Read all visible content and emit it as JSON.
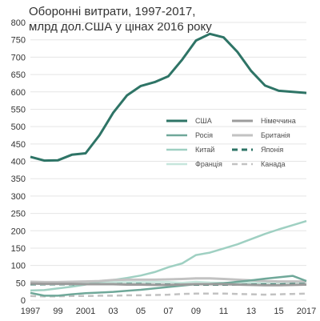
{
  "chart_data": {
    "type": "line",
    "title_line1": "Оборонні витрати, 1997-2017,",
    "title_line2": "млрд дол.США у цінах 2016 року",
    "xlabel": "",
    "ylabel": "",
    "xlim": [
      1997,
      2017
    ],
    "ylim": [
      0,
      800
    ],
    "grid": true,
    "legend_position": "middle",
    "x": [
      1997,
      1998,
      1999,
      2000,
      2001,
      2002,
      2003,
      2004,
      2005,
      2006,
      2007,
      2008,
      2009,
      2010,
      2011,
      2012,
      2013,
      2014,
      2015,
      2016,
      2017
    ],
    "y_ticks": [
      0,
      50,
      100,
      150,
      200,
      250,
      300,
      350,
      400,
      450,
      500,
      550,
      600,
      650,
      700,
      750,
      800
    ],
    "x_tick_values": [
      1997,
      1999,
      2001,
      2003,
      2005,
      2007,
      2009,
      2011,
      2013,
      2015,
      2017
    ],
    "x_tick_labels": [
      "1997",
      "99",
      "2001",
      "03",
      "05",
      "07",
      "09",
      "11",
      "13",
      "15",
      "2017"
    ],
    "series": [
      {
        "name": "США",
        "color": "#2e7466",
        "width": 3,
        "dash": "",
        "values": [
          413,
          402,
          403,
          419,
          423,
          475,
          540,
          590,
          617,
          628,
          645,
          693,
          748,
          767,
          757,
          715,
          660,
          618,
          603,
          600,
          597
        ]
      },
      {
        "name": "Німеччина",
        "color": "#9c9c9c",
        "width": 3,
        "dash": "",
        "values": [
          48,
          47,
          47,
          47,
          46,
          46,
          46,
          45,
          45,
          44,
          44,
          45,
          46,
          46,
          46,
          45,
          44,
          43,
          43,
          44,
          45
        ]
      },
      {
        "name": "Росія",
        "color": "#6fa899",
        "width": 2.5,
        "dash": "",
        "values": [
          21,
          13,
          13,
          17,
          20,
          22,
          24,
          27,
          30,
          34,
          38,
          42,
          46,
          47,
          49,
          53,
          57,
          62,
          66,
          70,
          55
        ]
      },
      {
        "name": "Британія",
        "color": "#c2c2c2",
        "width": 3,
        "dash": "",
        "values": [
          53,
          52,
          52,
          53,
          54,
          55,
          58,
          59,
          59,
          59,
          60,
          61,
          63,
          63,
          61,
          59,
          57,
          55,
          54,
          54,
          54
        ]
      },
      {
        "name": "Китай",
        "color": "#9fd0c2",
        "width": 2.5,
        "dash": "",
        "values": [
          28,
          29,
          34,
          39,
          45,
          53,
          58,
          64,
          71,
          81,
          95,
          106,
          130,
          137,
          149,
          161,
          176,
          191,
          204,
          216,
          228
        ]
      },
      {
        "name": "Японія",
        "color": "#2e7466",
        "width": 3,
        "dash": "7,5",
        "values": [
          46,
          46,
          46,
          46,
          46,
          46,
          46,
          46,
          46,
          45,
          45,
          45,
          45,
          45,
          45,
          45,
          45,
          45,
          45,
          46,
          46
        ]
      },
      {
        "name": "Франція",
        "color": "#c6e6dc",
        "width": 2.5,
        "dash": "",
        "values": [
          51,
          50,
          50,
          50,
          50,
          51,
          52,
          52,
          52,
          52,
          52,
          50,
          53,
          51,
          50,
          50,
          50,
          50,
          50,
          51,
          52
        ]
      },
      {
        "name": "Канада",
        "color": "#c2c2c2",
        "width": 2.5,
        "dash": "7,5",
        "values": [
          12,
          11,
          11,
          12,
          12,
          13,
          13,
          14,
          14,
          15,
          16,
          18,
          19,
          19,
          19,
          18,
          17,
          16,
          17,
          18,
          19
        ]
      }
    ],
    "legend_order": [
      "США",
      "Німеччина",
      "Росія",
      "Британія",
      "Китай",
      "Японія",
      "Франція",
      "Канада"
    ]
  }
}
